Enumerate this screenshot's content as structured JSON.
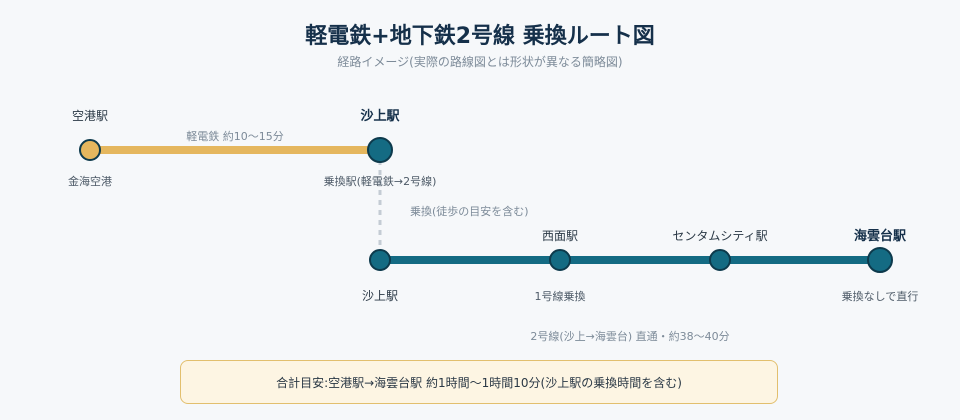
{
  "title": "軽電鉄+地下鉄2号線 乗換ルート図",
  "subtitle": "経路イメージ(実際の路線図とは形状が異なる簡略図)",
  "colors": {
    "light_rail": "#e5b75e",
    "subway": "#146b83",
    "transfer_walk": "#c4ccd4",
    "station_border": "#0d3a4c",
    "summary_bg": "#fdf5e3",
    "summary_border": "#e2bf6e"
  },
  "light_rail": {
    "label": "軽電鉄 約10〜15分",
    "stations": [
      {
        "name": "空港駅",
        "sub": "金海空港"
      },
      {
        "name": "沙上駅",
        "sub": "乗換駅(軽電鉄→2号線)"
      }
    ]
  },
  "transfer": {
    "label": "乗換(徒歩の目安を含む)"
  },
  "subway": {
    "label": "2号線(沙上→海雲台) 直通・約38〜40分",
    "stations": [
      {
        "name": "沙上駅",
        "sub": ""
      },
      {
        "name": "西面駅",
        "sub": "1号線乗換"
      },
      {
        "name": "センタムシティ駅",
        "sub": ""
      },
      {
        "name": "海雲台駅",
        "sub": "乗換なしで直行"
      }
    ]
  },
  "summary": "合計目安:空港駅→海雲台駅 約1時間〜1時間10分(沙上駅の乗換時間を含む)"
}
